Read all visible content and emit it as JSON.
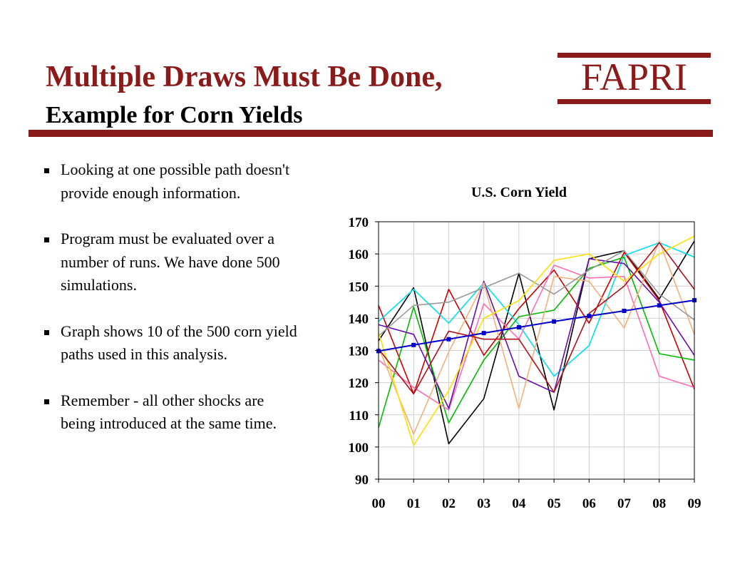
{
  "slide": {
    "title_line1": "Multiple Draws Must Be Done,",
    "title_line2": "Example for Corn Yields",
    "logo": "FAPRI",
    "accent_color": "#8b1a1a",
    "bullets": [
      "Looking at one possible path doesn't provide enough information.",
      "Program must be evaluated over a number of runs. We have done 500 simulations.",
      "Graph shows 10 of the 500 corn yield paths used in this analysis.",
      "Remember - all other shocks are being introduced at the same time."
    ]
  },
  "chart_data": {
    "type": "line",
    "title": "U.S. Corn Yield",
    "xlabel": "",
    "ylabel": "",
    "categories": [
      "00",
      "01",
      "02",
      "03",
      "04",
      "05",
      "06",
      "07",
      "08",
      "09"
    ],
    "ylim": [
      90,
      170
    ],
    "yticks": [
      90,
      100,
      110,
      120,
      130,
      140,
      150,
      160,
      170
    ],
    "grid": true,
    "legend": "none",
    "series": [
      {
        "color": "#000000",
        "values": [
          133,
          149.5,
          101,
          115,
          154,
          111.5,
          158.5,
          161,
          146,
          164
        ]
      },
      {
        "color": "#cc0000",
        "values": [
          144,
          116.5,
          149,
          128.5,
          143,
          155,
          138.5,
          160.5,
          145.5,
          118
        ]
      },
      {
        "color": "#00e0f0",
        "values": [
          139,
          149,
          138.5,
          151,
          138,
          122,
          131.5,
          159.5,
          163.5,
          159
        ]
      },
      {
        "color": "#00bb00",
        "values": [
          106,
          143.5,
          107.5,
          127,
          140.5,
          142.5,
          155.5,
          159,
          129,
          127
        ]
      },
      {
        "color": "#ff6eb4",
        "values": [
          127,
          118.5,
          111.5,
          144.5,
          133.5,
          156.5,
          152.5,
          153,
          122,
          118.5
        ]
      },
      {
        "color": "#6a0dad",
        "values": [
          138,
          135,
          112,
          151.5,
          122,
          117,
          158.5,
          157,
          145,
          128.5
        ]
      },
      {
        "color": "#f5b07a",
        "values": [
          131,
          104,
          129.5,
          151,
          112,
          153,
          151.5,
          137,
          164,
          135
        ]
      },
      {
        "color": "#999999",
        "values": [
          134.5,
          144,
          145,
          149.5,
          154,
          147.5,
          155,
          161,
          147.5,
          139.5
        ]
      },
      {
        "color": "#ffe000",
        "values": [
          135.5,
          100.5,
          117.5,
          140,
          145.5,
          158,
          160,
          151.5,
          160,
          165.5
        ]
      },
      {
        "color": "#b0101a",
        "values": [
          130.5,
          116.5,
          136,
          133.5,
          133.5,
          117,
          141.5,
          150,
          163.5,
          149
        ]
      },
      {
        "color": "#0000cc",
        "markers": true,
        "values": [
          129.8,
          131.7,
          133.5,
          135.4,
          137.2,
          139.0,
          140.7,
          142.3,
          144.0,
          145.6
        ]
      }
    ]
  }
}
